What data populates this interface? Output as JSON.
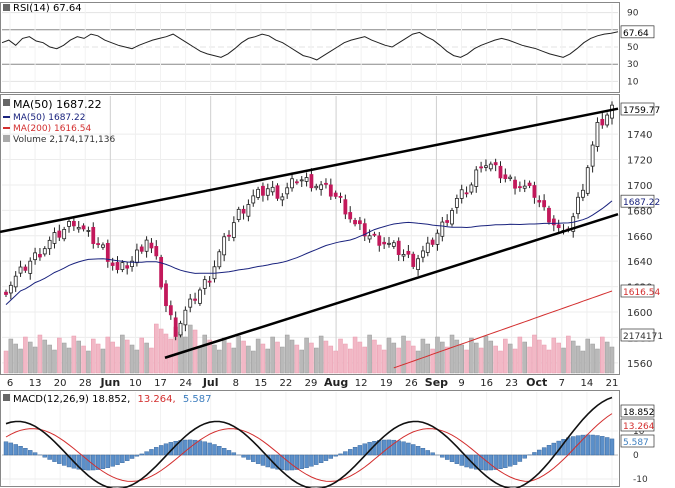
{
  "chart_data": {
    "type": "candlestick",
    "symbol_label": "$SPX (Daily) 1759.77",
    "last_price": "1759.77",
    "rsi_panel": {
      "label": "RSI(14) 67.64",
      "current_label": "67.64",
      "ticks": [
        90,
        70,
        50,
        30,
        10
      ],
      "values": [
        55,
        58,
        52,
        60,
        62,
        57,
        55,
        50,
        48,
        52,
        58,
        62,
        60,
        65,
        63,
        58,
        55,
        52,
        50,
        48,
        52,
        55,
        58,
        60,
        62,
        65,
        60,
        55,
        50,
        45,
        42,
        40,
        38,
        42,
        48,
        55,
        60,
        62,
        65,
        63,
        58,
        55,
        50,
        45,
        40,
        38,
        35,
        40,
        45,
        50,
        55,
        58,
        60,
        62,
        58,
        55,
        52,
        50,
        55,
        60,
        65,
        67,
        62,
        58,
        52,
        45,
        40,
        38,
        42,
        48,
        52,
        55,
        58,
        60,
        58,
        55,
        52,
        50,
        48,
        45,
        42,
        40,
        38,
        42,
        48,
        55,
        60,
        63,
        65,
        66,
        67.64
      ]
    },
    "price_panel": {
      "legend": [
        {
          "label": "MA(50) 1687.22",
          "color": "#1a237e"
        },
        {
          "label": "MA(200) 1616.54",
          "color": "#d32f2f"
        },
        {
          "label": "Volume 2,174,171,136",
          "color": "#888888"
        }
      ],
      "y_ticks": [
        1740,
        1720,
        1700,
        1680,
        1660,
        1640,
        1620,
        1600,
        1580,
        1560
      ],
      "ylim": [
        1552,
        1770
      ],
      "ma50_label": "1687.22",
      "ma200_label": "1616.54",
      "volume_label": "2174171",
      "x_labels": [
        "6",
        "13",
        "20",
        "28",
        "Jun",
        "10",
        "17",
        "24",
        "Jul",
        "8",
        "15",
        "22",
        "29",
        "Aug",
        "12",
        "19",
        "26",
        "Sep",
        "9",
        "16",
        "23",
        "Oct",
        "7",
        "14",
        "21"
      ],
      "x_label_major": [
        "Jun",
        "Jul",
        "Aug",
        "Sep",
        "Oct"
      ],
      "trend_upper": [
        1663,
        1760
      ],
      "trend_lower": [
        1564,
        1677
      ]
    },
    "macd_panel": {
      "label": "MACD(12,26,9) 18.852, 13.264, 5.587",
      "label_macd": "MACD(12,26,9) 18.852,",
      "label_signal": "13.264,",
      "label_hist": "5.587",
      "ticks": [
        10,
        0,
        -10
      ],
      "macd_label": "18.852",
      "signal_label": "13.264",
      "hist_label": "5.587"
    }
  }
}
